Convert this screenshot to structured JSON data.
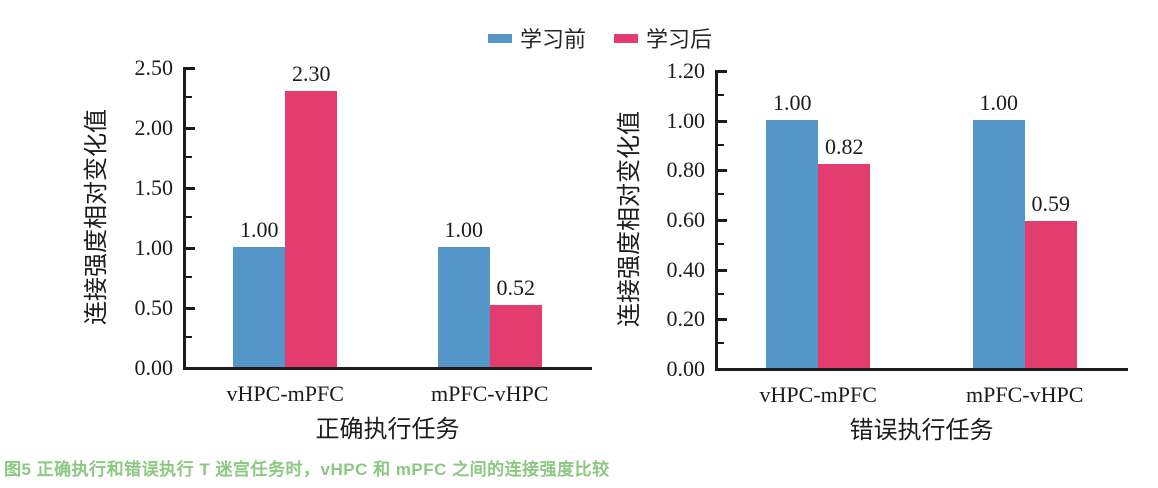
{
  "figure": {
    "caption": "图5 正确执行和错误执行 T 迷宫任务时，vHPC 和 mPFC 之间的连接强度比较",
    "caption_color": "#8CC882"
  },
  "legend": {
    "position": "top-center",
    "items": [
      {
        "label": "学习前",
        "color": "#5596C8"
      },
      {
        "label": "学习后",
        "color": "#E23D6E"
      }
    ]
  },
  "chart_data": [
    {
      "type": "bar",
      "title": "",
      "xlabel": "正确执行任务",
      "ylabel": "连接强度相对变化值",
      "categories": [
        "vHPC-mPFC",
        "mPFC-vHPC"
      ],
      "series": [
        {
          "name": "学习前",
          "color": "#5596C8",
          "values": [
            1.0,
            1.0
          ]
        },
        {
          "name": "学习后",
          "color": "#E23D6E",
          "values": [
            2.3,
            0.52
          ]
        }
      ],
      "ylim": [
        0,
        2.5
      ],
      "ytick_step": 0.5,
      "yminor_step": 0.25,
      "tick_decimals": 2,
      "grid": false,
      "value_labels": true
    },
    {
      "type": "bar",
      "title": "",
      "xlabel": "错误执行任务",
      "ylabel": "连接强度相对变化值",
      "categories": [
        "vHPC-mPFC",
        "mPFC-vHPC"
      ],
      "series": [
        {
          "name": "学习前",
          "color": "#5596C8",
          "values": [
            1.0,
            1.0
          ]
        },
        {
          "name": "学习后",
          "color": "#E23D6E",
          "values": [
            0.82,
            0.59
          ]
        }
      ],
      "ylim": [
        0,
        1.2
      ],
      "ytick_step": 0.2,
      "yminor_step": 0.1,
      "tick_decimals": 2,
      "grid": false,
      "value_labels": true
    }
  ]
}
